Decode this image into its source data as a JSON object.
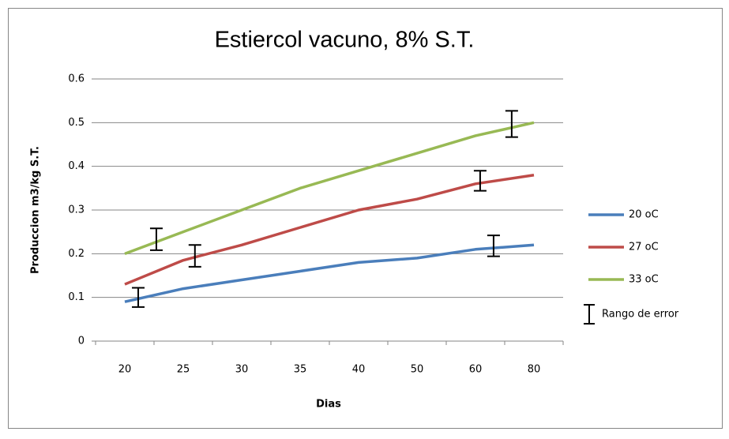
{
  "chart_data": {
    "type": "line",
    "title": "Estiercol vacuno, 8% S.T.",
    "x_label": "Dias",
    "y_label": "Produccion  m3/kg S.T.",
    "categories": [
      "20",
      "25",
      "30",
      "35",
      "40",
      "50",
      "60",
      "80"
    ],
    "series": [
      {
        "name": "20 oC",
        "color": "#4a7ebb",
        "values": [
          0.09,
          0.12,
          0.14,
          0.16,
          0.18,
          0.19,
          0.21,
          0.22
        ]
      },
      {
        "name": "27 oC",
        "color": "#be4b48",
        "values": [
          0.13,
          0.185,
          0.22,
          0.26,
          0.3,
          0.325,
          0.36,
          0.38
        ]
      },
      {
        "name": "33 oC",
        "color": "#98b954",
        "values": [
          0.2,
          0.25,
          0.3,
          0.35,
          0.39,
          0.43,
          0.47,
          0.5
        ]
      }
    ],
    "error_legend": "Rango de error",
    "error_bars": [
      {
        "at": 0.23,
        "value": 0.1,
        "error": 0.022
      },
      {
        "at": 0.54,
        "value": 0.233,
        "error": 0.025
      },
      {
        "at": 1.2,
        "value": 0.195,
        "error": 0.025
      },
      {
        "at": 6.08,
        "value": 0.367,
        "error": 0.023
      },
      {
        "at": 6.31,
        "value": 0.218,
        "error": 0.024
      },
      {
        "at": 6.62,
        "value": 0.497,
        "error": 0.03
      }
    ],
    "ylim": [
      0,
      0.6
    ],
    "yticks": [
      0,
      0.1,
      0.2,
      0.3,
      0.4,
      0.5,
      0.6
    ],
    "grid": true,
    "legend": "right"
  }
}
